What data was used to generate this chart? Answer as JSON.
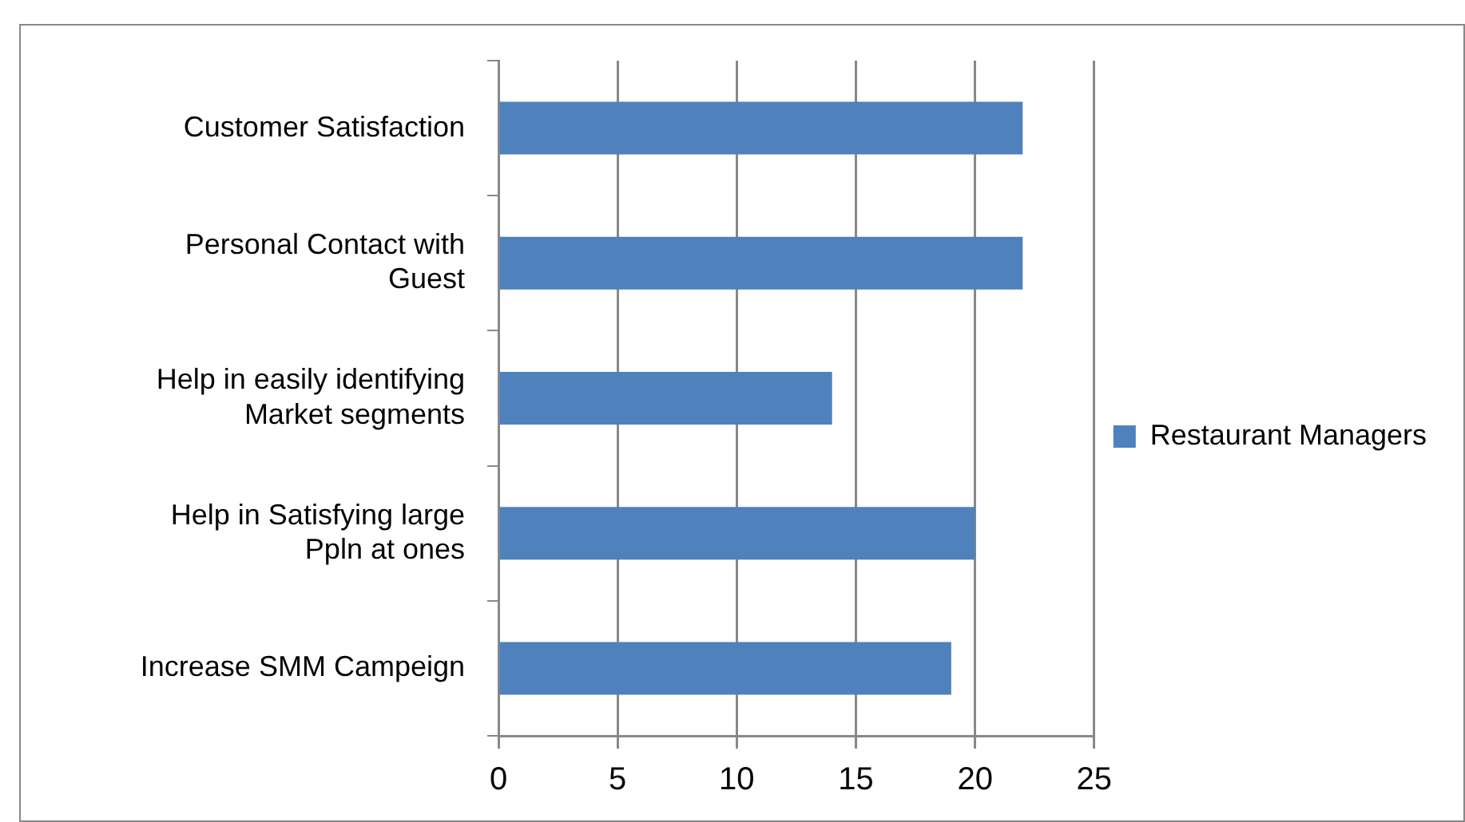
{
  "chart_data": {
    "type": "bar",
    "orientation": "horizontal",
    "categories": [
      "Customer Satisfaction",
      "Personal Contact with Guest",
      "Help in easily identifying Market segments",
      "Help in Satisfying large Ppln at ones",
      "Increase SMM Campeign"
    ],
    "series": [
      {
        "name": "Restaurant Managers",
        "color": "#4f81bd",
        "values": [
          22,
          22,
          14,
          20,
          19
        ]
      }
    ],
    "xlim": [
      0,
      25
    ],
    "xticks": [
      0,
      5,
      10,
      15,
      20,
      25
    ],
    "grid": "x",
    "legend": "right"
  }
}
